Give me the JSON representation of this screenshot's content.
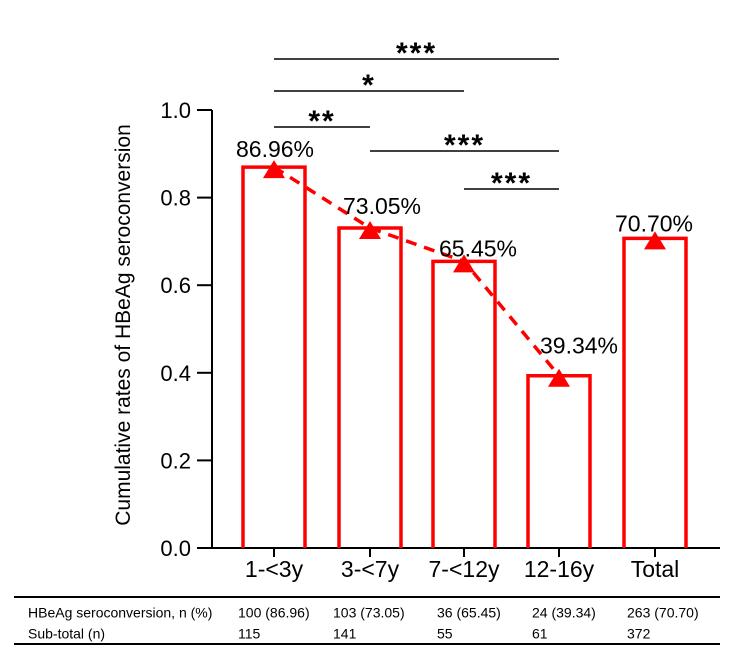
{
  "figure": {
    "background": "#ffffff"
  },
  "chart_data": {
    "type": "bar",
    "title": "",
    "xlabel": "",
    "ylabel": "Cumulative rates of HBeAg seroconversion",
    "categories": [
      "1-<3y",
      "3-<7y",
      "7-<12y",
      "12-16y",
      "Total"
    ],
    "values": [
      0.8696,
      0.7305,
      0.6545,
      0.3934,
      0.707
    ],
    "value_labels": [
      "86.96%",
      "73.05%",
      "65.45%",
      "39.34%",
      "70.70%"
    ],
    "ylim": [
      0.0,
      1.0
    ],
    "yticks": [
      0.0,
      0.2,
      0.4,
      0.6,
      0.8,
      1.0
    ],
    "ytick_labels": [
      "0.0",
      "0.2",
      "0.4",
      "0.6",
      "0.8",
      "1.0"
    ],
    "grid": false,
    "legend": null,
    "bar_fill": "none",
    "bar_edge_color": "#ff0000",
    "trend_line": {
      "connects": [
        "1-<3y",
        "3-<7y",
        "7-<12y",
        "12-16y"
      ],
      "style": "dashed",
      "color": "#ff0000",
      "marker": "filled-triangle-up",
      "marker_color": "#ff0000",
      "markers_on_all_bars": true
    },
    "significance_brackets": [
      {
        "from": "1-<3y",
        "to": "12-16y",
        "stars": "***"
      },
      {
        "from": "1-<3y",
        "to": "7-<12y",
        "stars": "*"
      },
      {
        "from": "1-<3y",
        "to": "3-<7y",
        "stars": "**"
      },
      {
        "from": "3-<7y",
        "to": "12-16y",
        "stars": "***"
      },
      {
        "from": "7-<12y",
        "to": "12-16y",
        "stars": "***"
      }
    ]
  },
  "table": {
    "rows": [
      {
        "label": "HBeAg seroconversion, n (%)",
        "values": [
          "100 (86.96)",
          "103 (73.05)",
          "36 (65.45)",
          "24 (39.34)",
          "263 (70.70)"
        ]
      },
      {
        "label": "Sub-total (n)",
        "values": [
          "115",
          "141",
          "55",
          "61",
          "372"
        ]
      }
    ]
  },
  "colors": {
    "series_red": "#ff0000",
    "text": "#000000",
    "axis": "#000000"
  }
}
